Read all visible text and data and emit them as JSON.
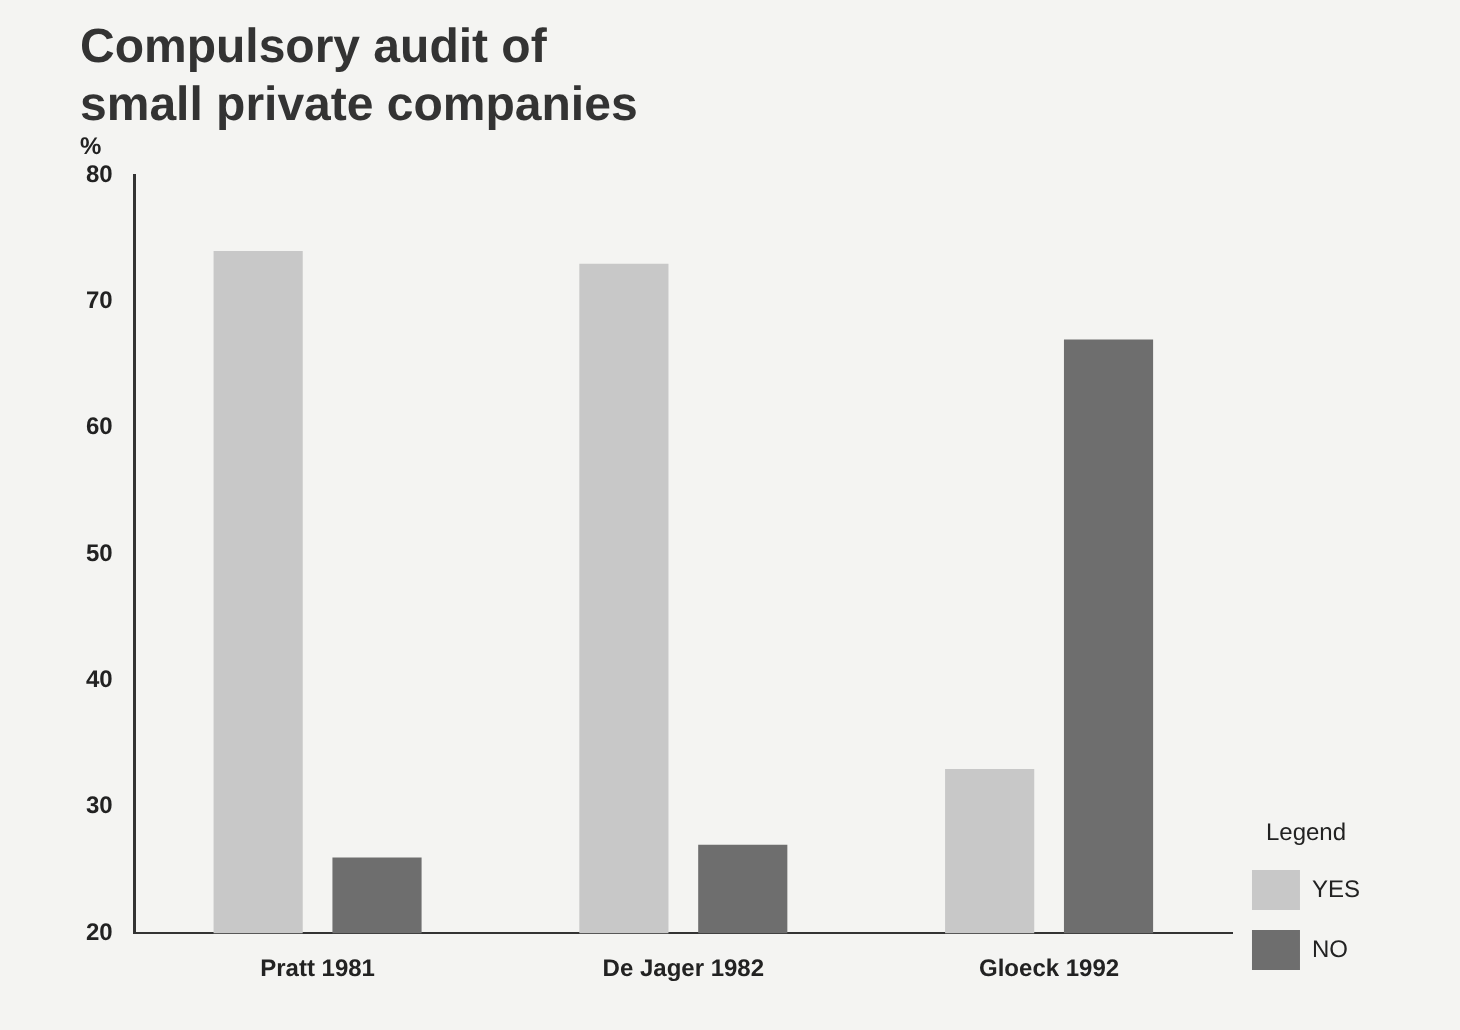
{
  "chart_data": {
    "type": "bar",
    "title": [
      "Compulsory audit of",
      "small private companies"
    ],
    "ylabel": "%",
    "legend_title": "Legend",
    "categories": [
      "Pratt 1981",
      "De Jager 1982",
      "Gloeck 1992"
    ],
    "series": [
      {
        "name": "YES",
        "color": "#c8c8c8",
        "values": [
          74,
          73,
          33
        ]
      },
      {
        "name": "NO",
        "color": "#6e6e6e",
        "values": [
          26,
          27,
          67
        ]
      }
    ],
    "ylim": [
      20,
      80
    ],
    "yticks": [
      20,
      30,
      40,
      50,
      60,
      70,
      80
    ],
    "grid": false,
    "legend": "right"
  }
}
